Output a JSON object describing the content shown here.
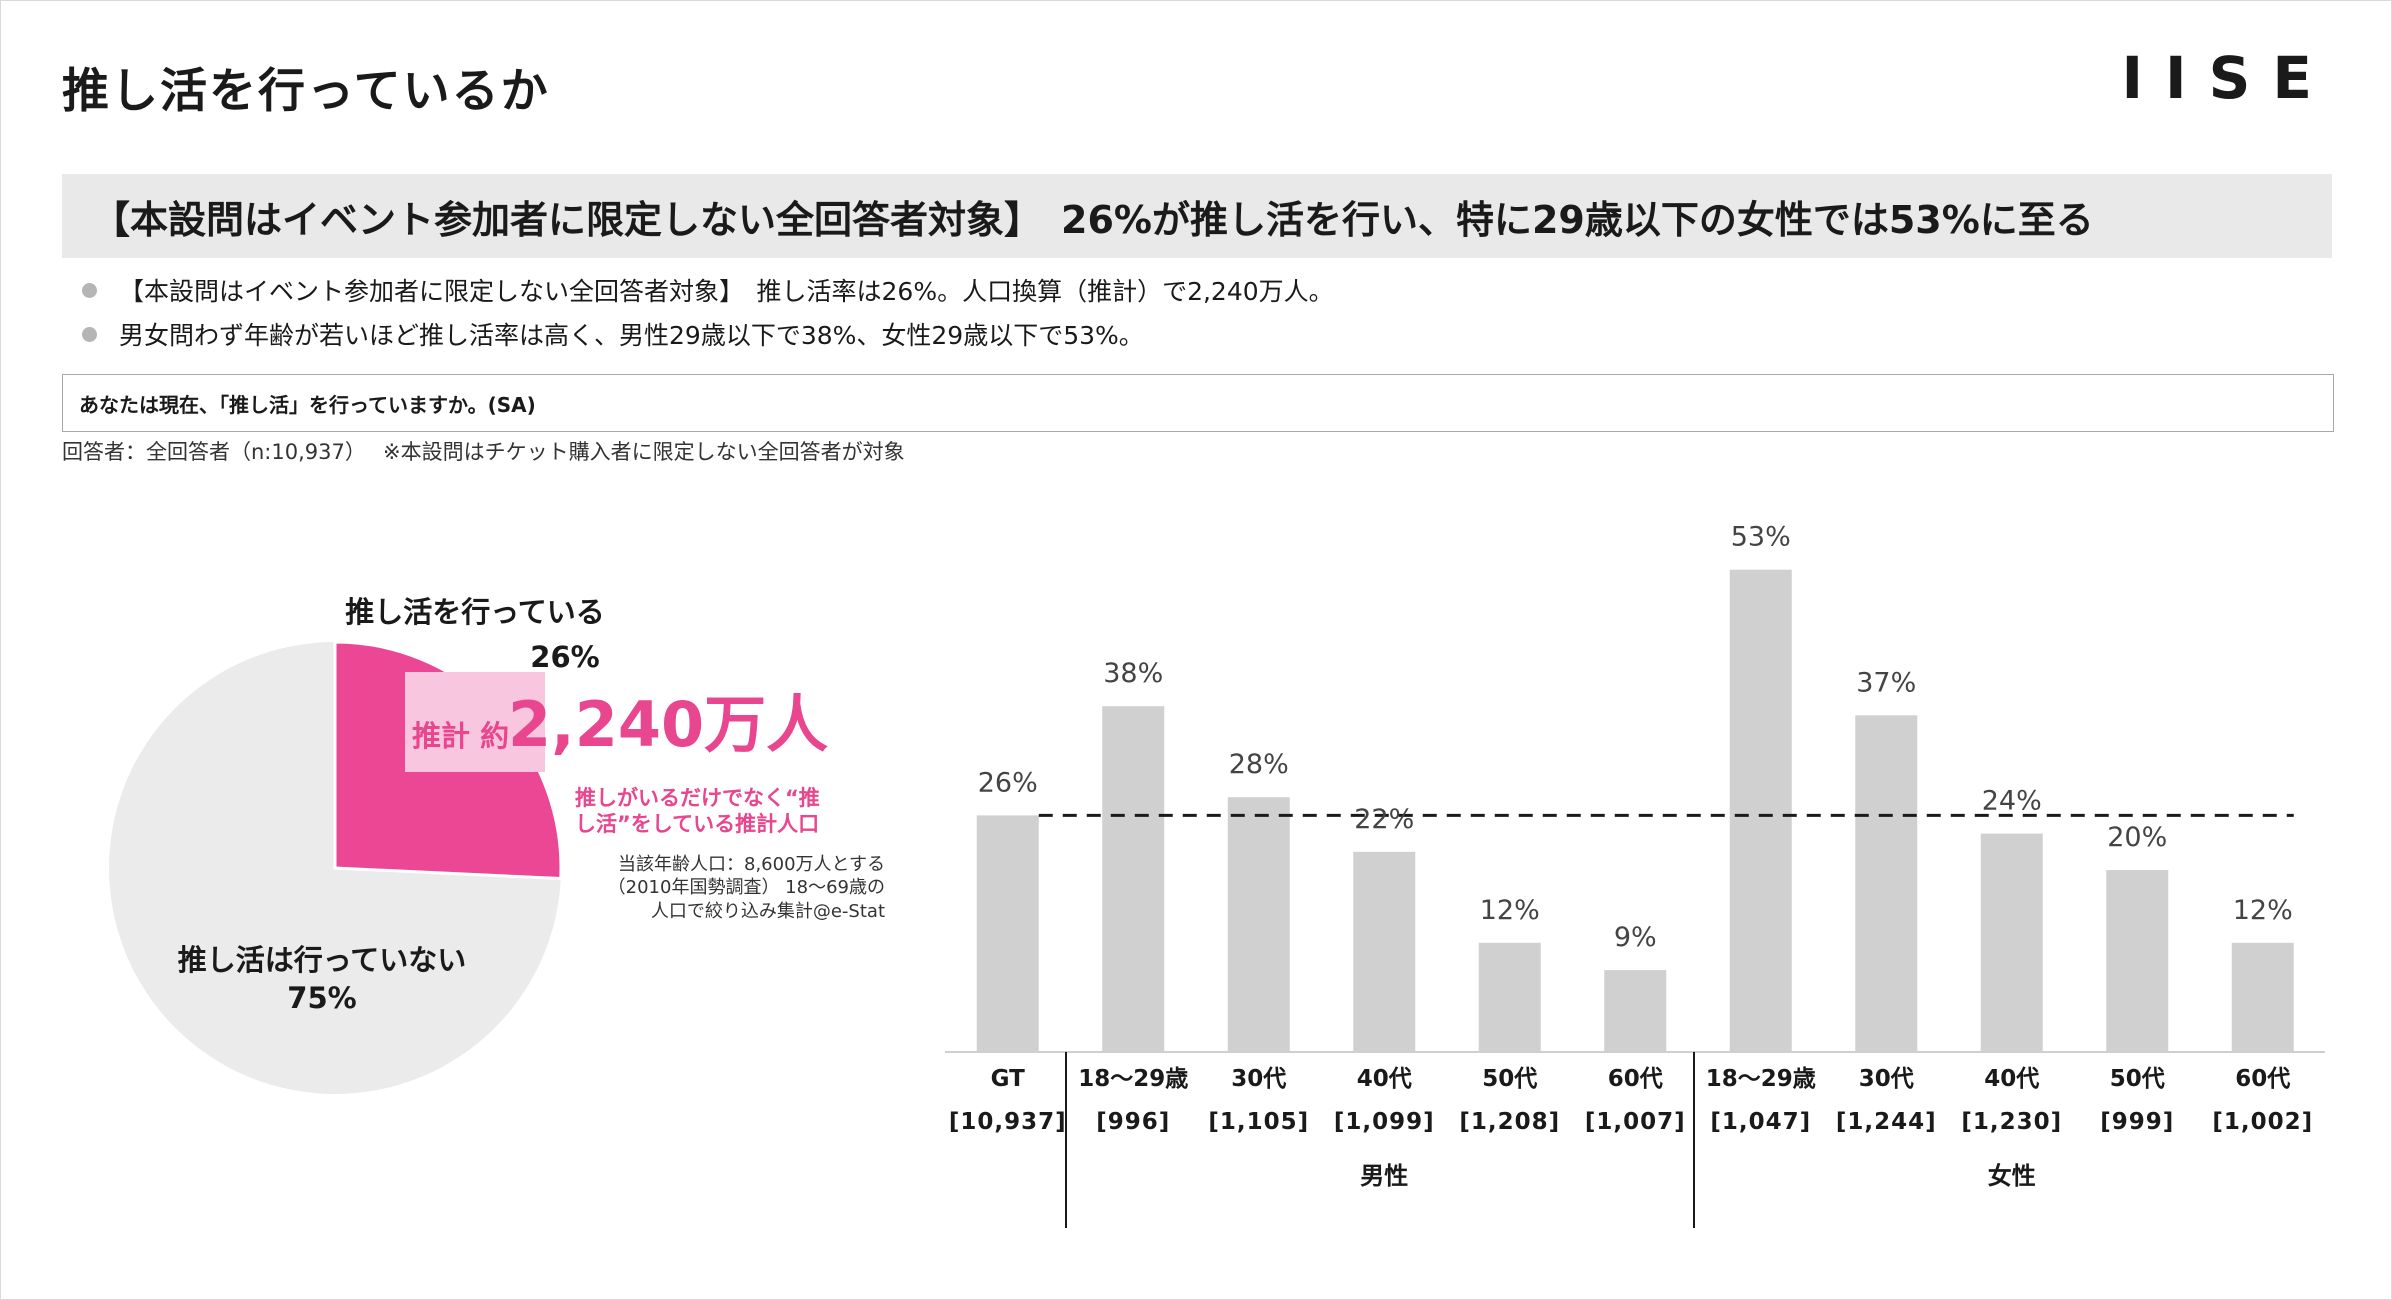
{
  "page": {
    "title": "推し活を行っているか",
    "logo": "IISE",
    "headline": "【本設問はイベント参加者に限定しない全回答者対象】　26%が推し活を行い、特に29歳以下の女性では53%に至る",
    "bullets": [
      "【本設問はイベント参加者に限定しない全回答者対象】　推し活率は26%。人口換算（推計）で2,240万人。",
      "男女問わず年齢が若いほど推し活率は高く、男性29歳以下で38%、女性29歳以下で53%。"
    ],
    "question": "あなたは現在、「推し活」を行っていますか。(SA)",
    "respondent": "回答者：全回答者（n:10,937）　 ※本設問はチケット購入者に限定しない全回答者が対象"
  },
  "pie": {
    "yes_label": "推し活を行っている",
    "yes_pct": "26%",
    "no_label": "推し活は行っていない",
    "no_pct": "75%",
    "estimate_prefix": "推計 約",
    "estimate_value": "2,240万人",
    "note_pink_1": "推しがいるだけでなく“推",
    "note_pink_2": "し活”をしている推計人口",
    "note_gray_1": "当該年齢人口：8,600万人とする",
    "note_gray_2": "（2010年国勢調査） 18～69歳の",
    "note_gray_3": "人口で絞り込み集計@e-Stat"
  },
  "chart_data": [
    {
      "type": "pie",
      "slices": [
        {
          "label": "推し活を行っている",
          "value": 26
        },
        {
          "label": "推し活は行っていない",
          "value": 75
        }
      ],
      "colors": [
        "#ec4795",
        "#ebebeb"
      ]
    },
    {
      "type": "bar",
      "categories": [
        "GT",
        "18～29歳",
        "30代",
        "40代",
        "50代",
        "60代",
        "18～29歳",
        "30代",
        "40代",
        "50代",
        "60代"
      ],
      "n_labels": [
        "[10,937]",
        "[996]",
        "[1,105]",
        "[1,099]",
        "[1,208]",
        "[1,007]",
        "[1,047]",
        "[1,244]",
        "[1,230]",
        "[999]",
        "[1,002]"
      ],
      "groups": [
        {
          "label": "男性",
          "from": 1,
          "to": 5
        },
        {
          "label": "女性",
          "from": 6,
          "to": 10
        }
      ],
      "values": [
        26,
        38,
        28,
        22,
        12,
        9,
        53,
        37,
        24,
        20,
        12
      ],
      "value_labels": [
        "26%",
        "38%",
        "28%",
        "22%",
        "12%",
        "9%",
        "53%",
        "37%",
        "24%",
        "20%",
        "12%"
      ],
      "reference_line": 26,
      "ylim": [
        0,
        55
      ],
      "bar_color": "#d0d0d0"
    }
  ]
}
